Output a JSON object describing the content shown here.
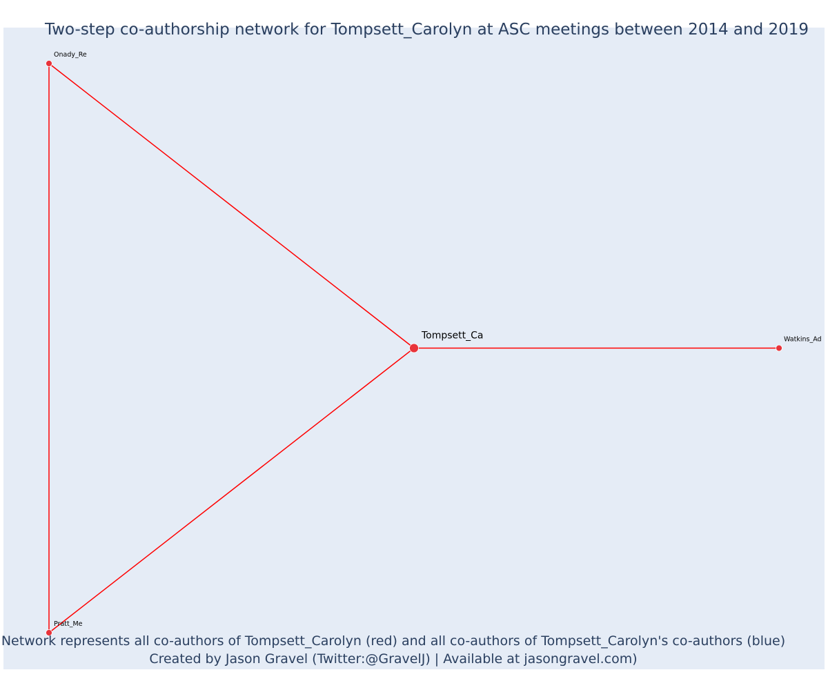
{
  "chart_data": {
    "type": "network",
    "title": "Two-step co-authorship network for Tompsett_Carolyn at ASC meetings between 2014 and 2019",
    "captions": [
      "Network represents all co-authors of Tompsett_Carolyn (red) and all co-authors of Tompsett_Carolyn's co-authors (blue)",
      "Created by Jason Gravel (Twitter:@GravelJ) | Available at jasongravel.com)"
    ],
    "node_color": "#e8333a",
    "edge_color": "#ff0000",
    "background_color": "#e5ecf6",
    "grid": false,
    "nodes": [
      {
        "id": "Tompsett_Ca",
        "x": 0.5,
        "y": 0.5,
        "focal": true
      },
      {
        "id": "Onady_Re",
        "x": 0.0,
        "y": 1.0,
        "focal": false
      },
      {
        "id": "Pratt_Me",
        "x": 0.0,
        "y": 0.0,
        "focal": false
      },
      {
        "id": "Watkins_Ad",
        "x": 1.0,
        "y": 0.5,
        "focal": false
      }
    ],
    "edges": [
      [
        "Tompsett_Ca",
        "Onady_Re"
      ],
      [
        "Tompsett_Ca",
        "Pratt_Me"
      ],
      [
        "Tompsett_Ca",
        "Watkins_Ad"
      ],
      [
        "Onady_Re",
        "Pratt_Me"
      ]
    ]
  }
}
